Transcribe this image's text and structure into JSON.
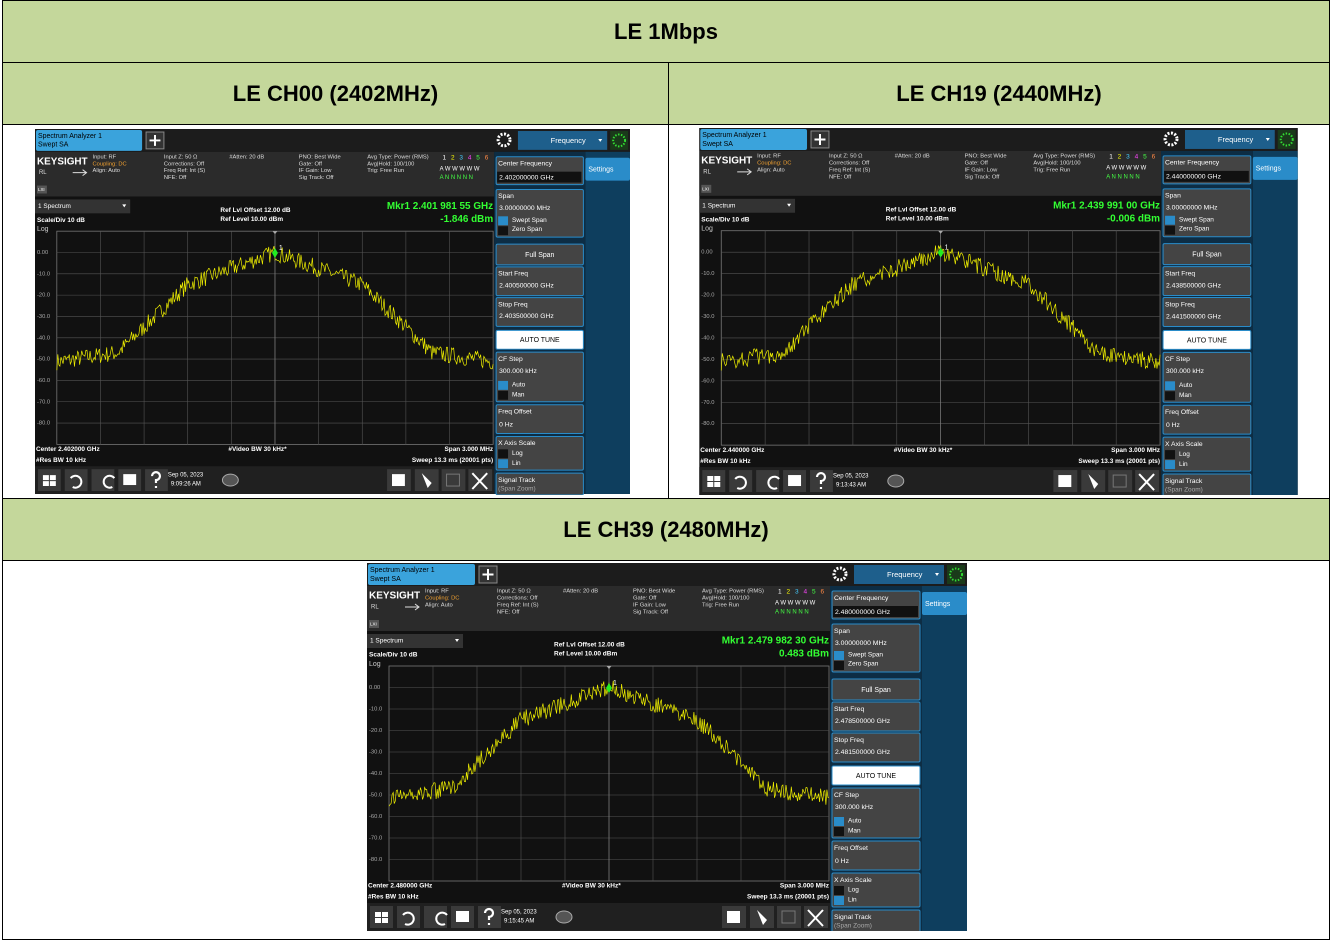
{
  "title": "LE 1Mbps",
  "channels": [
    {
      "label": "LE CH00 (2402MHz)",
      "screen": {
        "center_frequency": "2.402000000 GHz",
        "start_freq": "2.400500000 GHz",
        "stop_freq": "2.403500000 GHz",
        "marker": "Mkr1  2.401 981 55 GHz",
        "marker_level": "-1.846 dBm",
        "center": "Center 2.402000 GHz",
        "date": "Sep 05, 2023",
        "time": "9:09:26 AM"
      }
    },
    {
      "label": "LE CH19 (2440MHz)",
      "screen": {
        "center_frequency": "2.440000000 GHz",
        "start_freq": "2.438500000 GHz",
        "stop_freq": "2.441500000 GHz",
        "marker": "Mkr1  2.439 991 00 GHz",
        "marker_level": "-0.006 dBm",
        "center": "Center 2.440000 GHz",
        "date": "Sep 05, 2023",
        "time": "9:13:43 AM"
      }
    },
    {
      "label": "LE CH39 (2480MHz)",
      "screen": {
        "center_frequency": "2.480000000 GHz",
        "start_freq": "2.478500000 GHz",
        "stop_freq": "2.481500000 GHz",
        "marker": "Mkr1  2.479 982 30 GHz",
        "marker_level": "0.483 dBm",
        "center": "Center 2.480000 GHz",
        "date": "Sep 05, 2023",
        "time": "9:15:45 AM"
      }
    }
  ],
  "analyzer": {
    "tab": [
      "Spectrum Analyzer 1",
      "Swept SA"
    ],
    "mode": "Frequency",
    "settings": "Settings",
    "brand": "KEYSIGHT",
    "rl": "RL",
    "lxi": "LXI",
    "info": [
      [
        "Input: RF",
        "Coupling: DC",
        "Align: Auto"
      ],
      [
        "Input Z: 50 Ω",
        "Corrections: Off",
        "Freq Ref: Int (S)",
        "NFE: Off"
      ],
      [
        "#Atten: 20 dB"
      ],
      [
        "PNO: Best Wide",
        "Gate: Off",
        "IF Gain: Low",
        "Sig Track: Off"
      ],
      [
        "Avg Type: Power (RMS)",
        "Avg|Hold: 100/100",
        "Trig: Free Run"
      ]
    ],
    "trace_numbers": [
      "1",
      "2",
      "3",
      "4",
      "5",
      "6"
    ],
    "trace_rows": [
      "A W W W W W",
      "A N N N N N"
    ],
    "window": "1 Spectrum",
    "scale": "Scale/Div 10 dB",
    "log": "Log",
    "ref_offset": "Ref Lvl Offset 12.00 dB",
    "ref_level": "Ref Level 10.00 dBm",
    "y_labels": [
      "0.00",
      "-10.0",
      "-20.0",
      "-30.0",
      "-40.0",
      "-50.0",
      "-60.0",
      "-70.0",
      "-80.0"
    ],
    "marker_id": "1",
    "res_bw": "#Res BW 10 kHz",
    "video_bw": "#Video BW 30 kHz*",
    "span": "Span 3.000 MHz",
    "sweep": "Sweep 13.3 ms (20001 pts)",
    "panel": {
      "center_frequency": "Center Frequency",
      "span": "Span",
      "span_value": "3.00000000 MHz",
      "swept_span": "Swept Span",
      "zero_span": "Zero Span",
      "full_span": "Full Span",
      "start_freq": "Start Freq",
      "stop_freq": "Stop Freq",
      "auto_tune": "AUTO TUNE",
      "cf_step": "CF Step",
      "cf_step_value": "300.000 kHz",
      "auto": "Auto",
      "man": "Man",
      "freq_offset": "Freq Offset",
      "freq_offset_value": "0 Hz",
      "x_axis_scale": "X Axis Scale",
      "log": "Log",
      "lin": "Lin",
      "signal_track": "Signal Track",
      "span_zoom": "(Span Zoom)"
    }
  }
}
